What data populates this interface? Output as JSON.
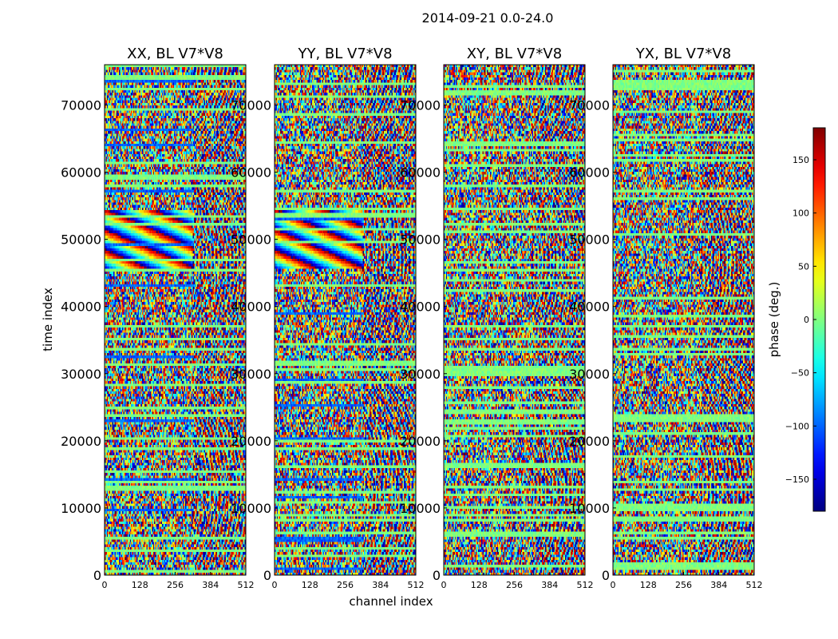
{
  "chart_data": {
    "type": "heatmap",
    "suptitle": "2014-09-21 0.0-24.0",
    "xlabel": "channel index",
    "ylabel": "time index",
    "xlim": [
      0,
      512
    ],
    "ylim": [
      0,
      76000
    ],
    "xticks": [
      0,
      128,
      256,
      384,
      512
    ],
    "yticks": [
      0,
      10000,
      20000,
      30000,
      40000,
      50000,
      60000,
      70000
    ],
    "panels": [
      {
        "title": "XX, BL V7*V8",
        "pol": "XX"
      },
      {
        "title": "YY, BL V7*V8",
        "pol": "YY"
      },
      {
        "title": "XY, BL V7*V8",
        "pol": "XY"
      },
      {
        "title": "YX, BL V7*V8",
        "pol": "YX"
      }
    ],
    "colorbar": {
      "label": "phase (deg.)",
      "colormap": "jet",
      "vmin": -180,
      "vmax": 180,
      "ticks": [
        -150,
        -100,
        -50,
        0,
        50,
        100,
        150
      ],
      "tick_labels": [
        "−150",
        "−100",
        "−50",
        "0",
        "50",
        "100",
        "150"
      ]
    }
  }
}
